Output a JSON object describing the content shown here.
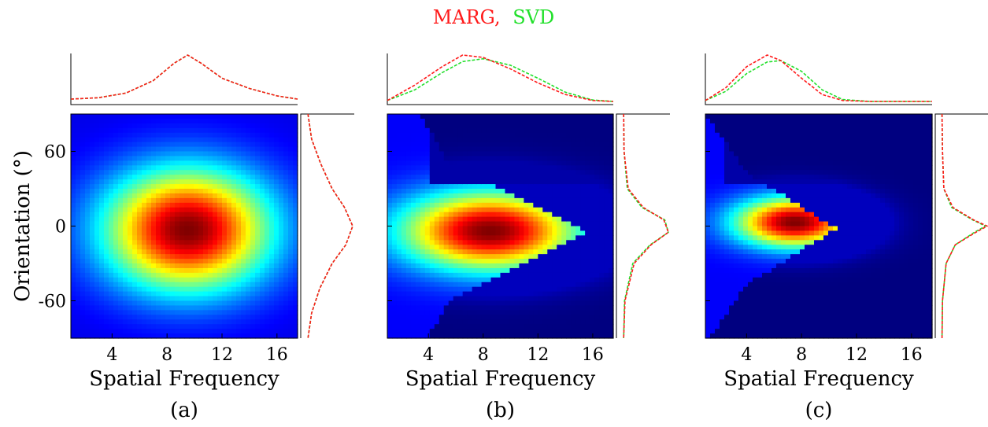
{
  "title": {
    "parts": [
      {
        "text": "MARG,",
        "color": "#ff1a1a"
      },
      {
        "text": "SVD",
        "color": "#22e02b"
      }
    ]
  },
  "legend": {
    "series": [
      {
        "name": "MARG",
        "color": "#ff1a1a"
      },
      {
        "name": "SVD",
        "color": "#22e02b"
      }
    ],
    "placement": "top-center"
  },
  "colormap": "jet",
  "chart_data": [
    {
      "type": "heatmap",
      "panel_label": "(a)",
      "xlabel": "Spatial Frequency",
      "ylabel": "Orientation (°)",
      "xlim": [
        1,
        17.5
      ],
      "ylim": [
        -90,
        90
      ],
      "xticks": [
        4,
        8,
        12,
        16
      ],
      "yticks": [
        60,
        0,
        -60
      ],
      "x_tick_labels": [
        "4",
        "8",
        "12",
        "16"
      ],
      "y_tick_labels": [
        "60",
        "0",
        "-60"
      ],
      "peak": {
        "x": 9.5,
        "y": -3,
        "spread_x": 4.2,
        "spread_y": 34
      },
      "cutoff": null,
      "top_marginal": {
        "x": [
          1,
          3,
          5,
          7,
          8.5,
          9.5,
          10.5,
          12,
          14,
          16,
          17.5
        ],
        "MARG": [
          0.05,
          0.08,
          0.18,
          0.45,
          0.82,
          1.0,
          0.82,
          0.5,
          0.28,
          0.12,
          0.05
        ],
        "SVD": [
          0.05,
          0.08,
          0.18,
          0.45,
          0.82,
          1.0,
          0.82,
          0.5,
          0.28,
          0.12,
          0.05
        ]
      },
      "right_marginal": {
        "y": [
          90,
          70,
          50,
          30,
          15,
          0,
          -15,
          -30,
          -50,
          -70,
          -90
        ],
        "MARG": [
          0.02,
          0.1,
          0.3,
          0.55,
          0.82,
          1.0,
          0.85,
          0.55,
          0.28,
          0.1,
          0.02
        ],
        "SVD": [
          0.02,
          0.1,
          0.3,
          0.55,
          0.82,
          1.0,
          0.85,
          0.55,
          0.28,
          0.1,
          0.02
        ]
      }
    },
    {
      "type": "heatmap",
      "panel_label": "(b)",
      "xlabel": "Spatial Frequency",
      "ylabel": "",
      "xlim": [
        1,
        17.5
      ],
      "ylim": [
        -90,
        90
      ],
      "xticks": [
        4,
        8,
        12,
        16
      ],
      "yticks": [
        60,
        0,
        -60
      ],
      "x_tick_labels": [
        "4",
        "8",
        "12",
        "16"
      ],
      "y_tick_labels": [],
      "peak": {
        "x": 8.5,
        "y": -4,
        "spread_x": 4.5,
        "spread_y": 22
      },
      "cutoff": {
        "type": "triangle",
        "apex_x": 15.5,
        "apex_y": -5,
        "base_x": 5.5,
        "half_width": 55
      },
      "top_marginal": {
        "x": [
          1,
          3,
          5,
          6.5,
          8,
          10,
          12,
          14,
          16,
          17.5
        ],
        "MARG": [
          0.02,
          0.35,
          0.75,
          1.0,
          0.95,
          0.7,
          0.4,
          0.15,
          0.02,
          0.0
        ],
        "SVD": [
          0.02,
          0.25,
          0.62,
          0.86,
          0.92,
          0.78,
          0.5,
          0.2,
          0.03,
          0.0
        ]
      },
      "right_marginal": {
        "y": [
          90,
          60,
          30,
          15,
          5,
          -5,
          -15,
          -30,
          -60,
          -90
        ],
        "MARG": [
          0.02,
          0.03,
          0.12,
          0.45,
          0.9,
          1.0,
          0.62,
          0.25,
          0.05,
          0.02
        ],
        "SVD": [
          0.02,
          0.03,
          0.1,
          0.42,
          0.92,
          1.0,
          0.6,
          0.22,
          0.04,
          0.02
        ]
      }
    },
    {
      "type": "heatmap",
      "panel_label": "(c)",
      "xlabel": "Spatial Frequency",
      "ylabel": "",
      "xlim": [
        1,
        17.5
      ],
      "ylim": [
        -90,
        90
      ],
      "xticks": [
        4,
        8,
        12,
        16
      ],
      "yticks": [
        60,
        0,
        -60
      ],
      "x_tick_labels": [
        "4",
        "8",
        "12",
        "16"
      ],
      "y_tick_labels": [],
      "peak": {
        "x": 7.5,
        "y": 3,
        "spread_x": 3.0,
        "spread_y": 14
      },
      "cutoff": {
        "type": "triangle",
        "apex_x": 10.5,
        "apex_y": -2,
        "base_x": 4.0,
        "half_width": 45
      },
      "top_marginal": {
        "x": [
          1,
          2.5,
          4,
          5.5,
          6.5,
          8,
          9.5,
          11,
          13,
          17.5
        ],
        "MARG": [
          0.02,
          0.3,
          0.75,
          1.0,
          0.88,
          0.5,
          0.15,
          0.02,
          0.0,
          0.0
        ],
        "SVD": [
          0.02,
          0.22,
          0.6,
          0.85,
          0.88,
          0.65,
          0.25,
          0.04,
          0.0,
          0.0
        ]
      },
      "right_marginal": {
        "y": [
          90,
          60,
          30,
          15,
          5,
          0,
          -5,
          -15,
          -30,
          -60,
          -90
        ],
        "MARG": [
          0.01,
          0.02,
          0.05,
          0.25,
          0.7,
          1.0,
          0.75,
          0.3,
          0.1,
          0.02,
          0.01
        ],
        "SVD": [
          0.01,
          0.02,
          0.05,
          0.22,
          0.68,
          0.96,
          0.72,
          0.3,
          0.1,
          0.02,
          0.01
        ]
      }
    }
  ]
}
